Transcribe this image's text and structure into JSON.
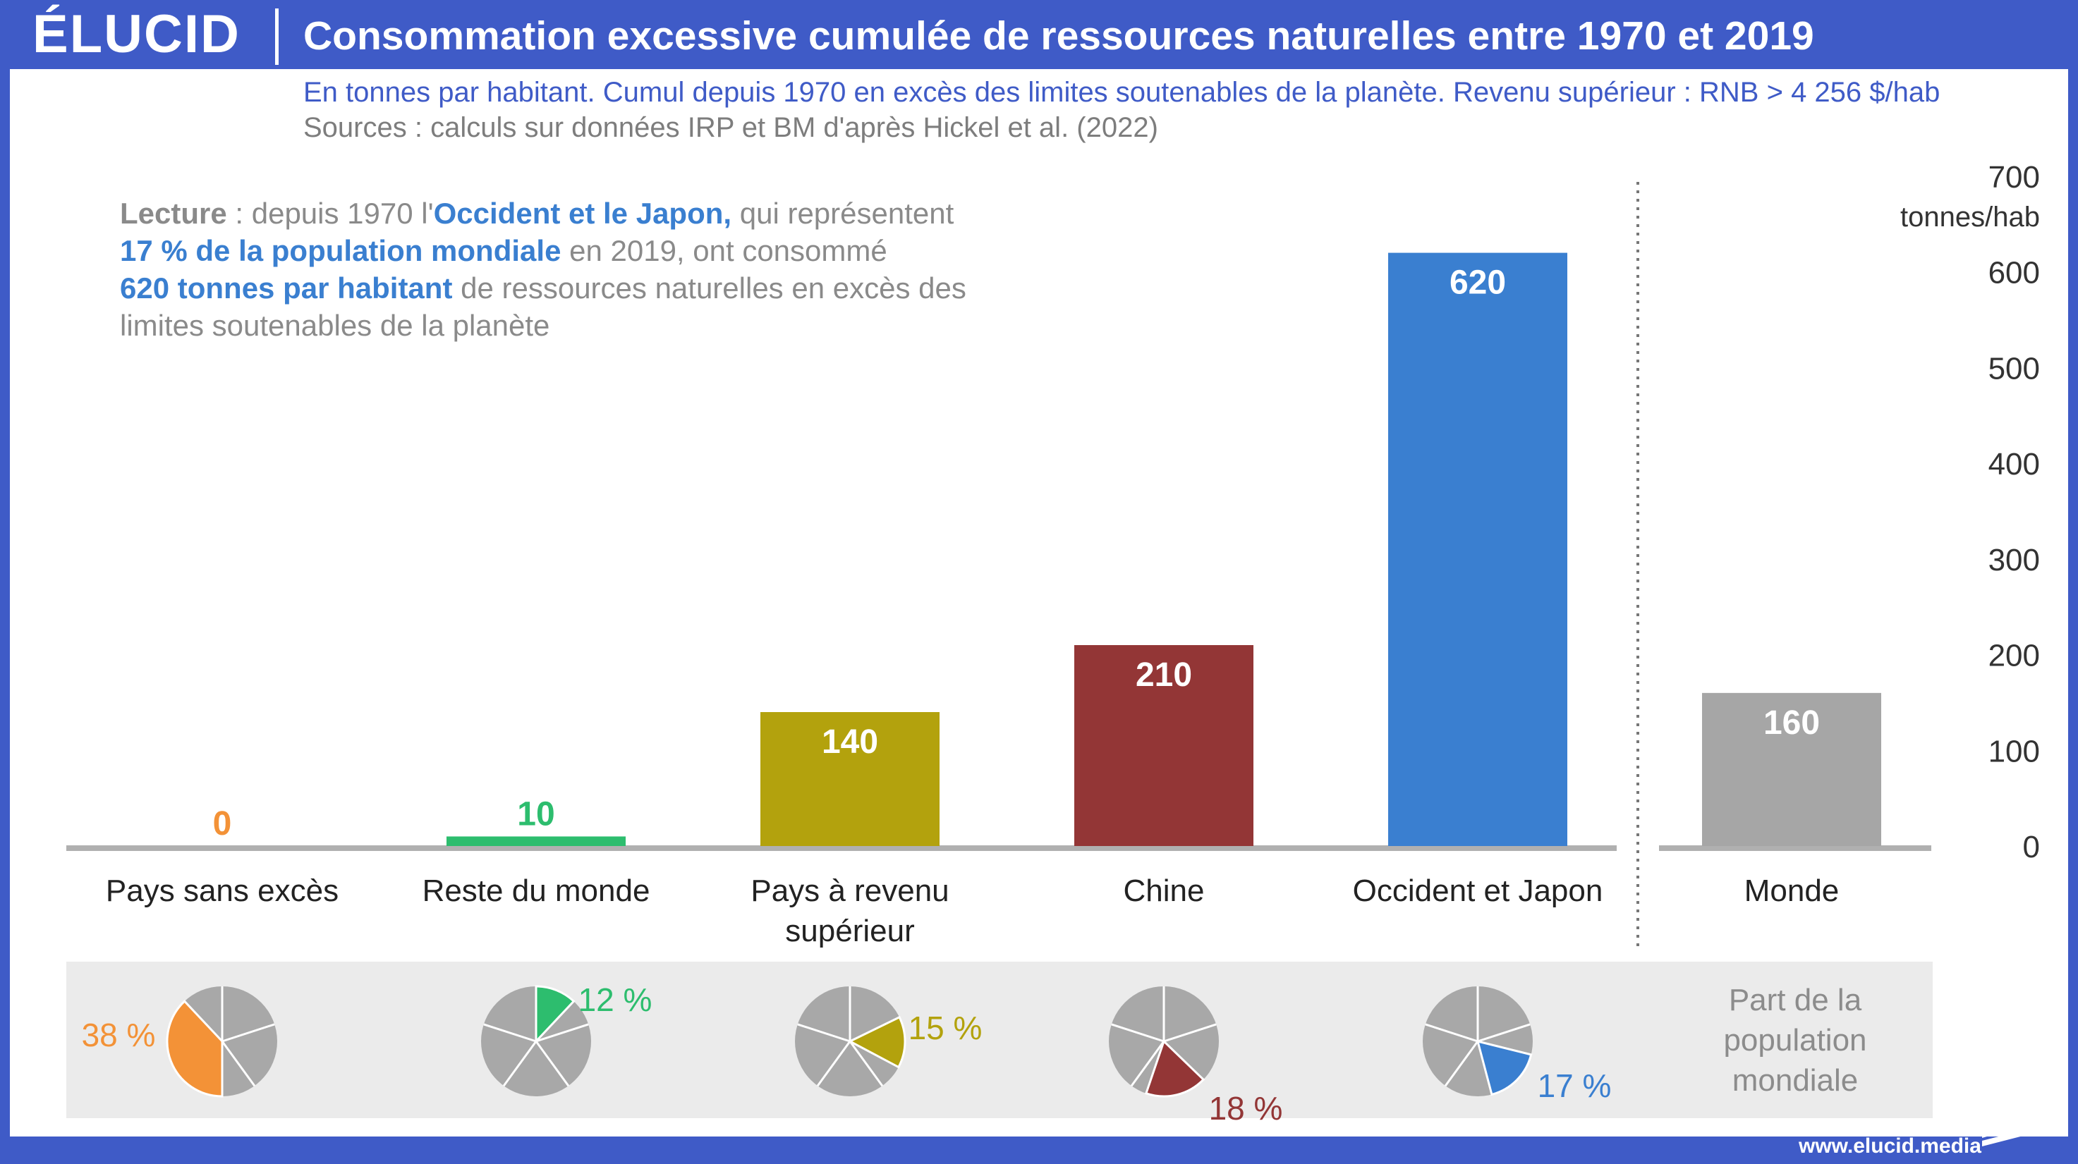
{
  "header": {
    "logo": "ÉLUCID",
    "title": "Consommation excessive cumulée de ressources naturelles entre 1970 et 2019"
  },
  "subtitle": "En tonnes par habitant. Cumul depuis 1970 en excès des limites soutenables de la planète. Revenu supérieur : RNB > 4 256 $/hab",
  "sources": "Sources : calculs sur données IRP et BM d'après Hickel et al. (2022)",
  "reading": {
    "lead": "Lecture",
    "t1": " : depuis 1970 l'",
    "h1": "Occident et le Japon,",
    "t2": " qui représentent ",
    "h2": "17 % de la population mondiale",
    "t3": " en 2019, ont consommé ",
    "h3": "620 tonnes par habitant",
    "t4": " de ressources naturelles en excès des limites soutenables de la planète"
  },
  "footer": {
    "url": "www.elucid.media"
  },
  "chart_data": {
    "type": "bar",
    "categories": [
      "Pays sans excès",
      "Reste du monde",
      "Pays à revenu supérieur",
      "Chine",
      "Occident et Japon",
      "Monde"
    ],
    "values": [
      0,
      10,
      140,
      210,
      620,
      160
    ],
    "ylabel": "tonnes/hab",
    "ylim": [
      0,
      700
    ],
    "yticks": [
      0,
      100,
      200,
      300,
      400,
      500,
      600,
      700
    ],
    "colors": [
      "#f39237",
      "#2dbd6e",
      "#b3a20d",
      "#933636",
      "#3a7fd0",
      "#a6a6a6"
    ],
    "population_share": {
      "label": "Part de la population mondiale",
      "values": [
        38,
        12,
        15,
        18,
        17,
        null
      ],
      "labels": [
        "38 %",
        "12 %",
        "15 %",
        "18 %",
        "17 %",
        ""
      ]
    },
    "grid": false,
    "legend": "none"
  }
}
